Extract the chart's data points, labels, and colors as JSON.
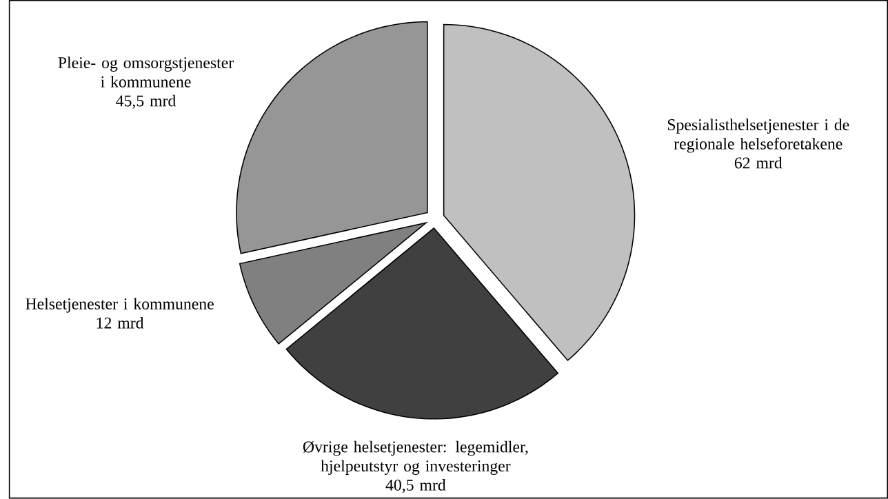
{
  "chart_data": {
    "type": "pie",
    "categories": [
      "Spesialisthelsetjenester i de regionale helseforetakene",
      "Øvrige helsetjenester: legemidler, hjelpeutstyr og investeringer",
      "Helsetjenester i kommunene",
      "Pleie- og omsorgstjenester i kommunene"
    ],
    "values": [
      62,
      40.5,
      12,
      45.5
    ],
    "value_labels": [
      "62 mrd",
      "40,5 mrd",
      "12 mrd",
      "45,5 mrd"
    ],
    "colors": [
      "#c0c0c0",
      "#404040",
      "#808080",
      "#969696"
    ]
  }
}
